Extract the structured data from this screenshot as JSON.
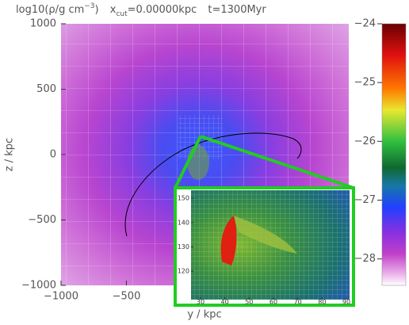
{
  "chart_data": {
    "type": "heatmap",
    "title_parts": [
      "log10(ρ/g cm",
      "−3",
      ")",
      "x",
      "cut",
      "=0.00000kpc",
      "t=1300Myr"
    ],
    "x_label": "y / kpc",
    "y_label": "z / kpc",
    "xlim": [
      -1000,
      1200
    ],
    "ylim": [
      -1000,
      1000
    ],
    "xticks": [
      {
        "value": -1000,
        "label": "−1000"
      },
      {
        "value": -500,
        "label": "−500"
      }
    ],
    "yticks": [
      {
        "value": -1000,
        "label": "−1000"
      },
      {
        "value": -500,
        "label": "−500"
      },
      0,
      500,
      1000
    ],
    "colorbar": {
      "lim": [
        -28.45,
        -24
      ],
      "ticks": [
        {
          "value": -24,
          "label": "−24"
        },
        {
          "value": -25,
          "label": "−25"
        },
        {
          "value": -26,
          "label": "−26"
        },
        {
          "value": -27,
          "label": "−27"
        },
        {
          "value": -28,
          "label": "−28"
        }
      ]
    },
    "inset": {
      "xlim": [
        26.1,
        91.3
      ],
      "ylim": [
        108.3,
        153.3
      ],
      "xticks": [
        30,
        40,
        50,
        60,
        70,
        80,
        90
      ],
      "yticks": [
        120,
        130,
        140,
        150
      ]
    }
  }
}
